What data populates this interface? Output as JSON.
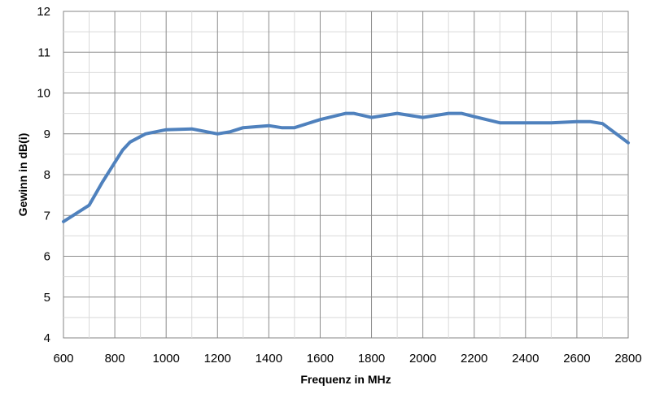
{
  "chart_data": {
    "type": "line",
    "title": "",
    "xlabel": "Frequenz in MHz",
    "ylabel": "Gewinn in dB(i)",
    "xlim": [
      600,
      2800
    ],
    "ylim": [
      4,
      12
    ],
    "x_ticks": [
      "600",
      "800",
      "1000",
      "1200",
      "1400",
      "1600",
      "1800",
      "2000",
      "2200",
      "2400",
      "2600",
      "2800"
    ],
    "y_ticks": [
      "4",
      "5",
      "6",
      "7",
      "8",
      "9",
      "10",
      "11",
      "12"
    ],
    "grid": true,
    "legend": "none",
    "line_color": "#4f81bd",
    "series": [
      {
        "x": [
          600,
          700,
          750,
          800,
          830,
          860,
          920,
          1000,
          1100,
          1200,
          1250,
          1300,
          1400,
          1450,
          1500,
          1600,
          1700,
          1730,
          1800,
          1900,
          2000,
          2100,
          2150,
          2200,
          2300,
          2400,
          2500,
          2600,
          2650,
          2700,
          2800
        ],
        "y": [
          6.85,
          7.25,
          7.8,
          8.3,
          8.6,
          8.8,
          9.0,
          9.1,
          9.12,
          9.0,
          9.05,
          9.15,
          9.2,
          9.15,
          9.15,
          9.35,
          9.5,
          9.5,
          9.4,
          9.5,
          9.4,
          9.5,
          9.5,
          9.42,
          9.27,
          9.27,
          9.27,
          9.3,
          9.3,
          9.25,
          8.78
        ]
      }
    ]
  }
}
